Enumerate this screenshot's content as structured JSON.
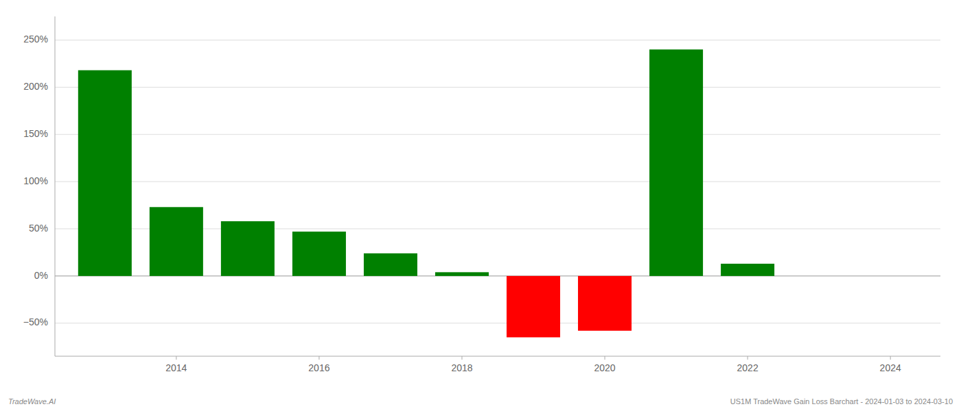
{
  "chart_data": {
    "type": "bar",
    "x": [
      2013,
      2014,
      2015,
      2016,
      2017,
      2018,
      2019,
      2020,
      2021,
      2022,
      2023
    ],
    "values": [
      218,
      73,
      58,
      47,
      24,
      4,
      -65,
      -58,
      240,
      13,
      0
    ],
    "colors": [
      "#008000",
      "#008000",
      "#008000",
      "#008000",
      "#008000",
      "#008000",
      "#ff0000",
      "#ff0000",
      "#008000",
      "#008000",
      "#008000"
    ],
    "xlim": [
      2012.3,
      2024.7
    ],
    "xticks": [
      2014,
      2016,
      2018,
      2020,
      2022,
      2024
    ],
    "ylim": [
      -85,
      275
    ],
    "yticks": [
      {
        "value": -50,
        "label": "−50%"
      },
      {
        "value": 0,
        "label": "0%"
      },
      {
        "value": 50,
        "label": "50%"
      },
      {
        "value": 100,
        "label": "100%"
      },
      {
        "value": 150,
        "label": "150%"
      },
      {
        "value": 200,
        "label": "200%"
      },
      {
        "value": 250,
        "label": "250%"
      }
    ],
    "grid": true,
    "annotations": [
      "TradeWave.AI",
      "US1M TradeWave Gain Loss Barchart - 2024-01-03 to 2024-03-10"
    ]
  }
}
